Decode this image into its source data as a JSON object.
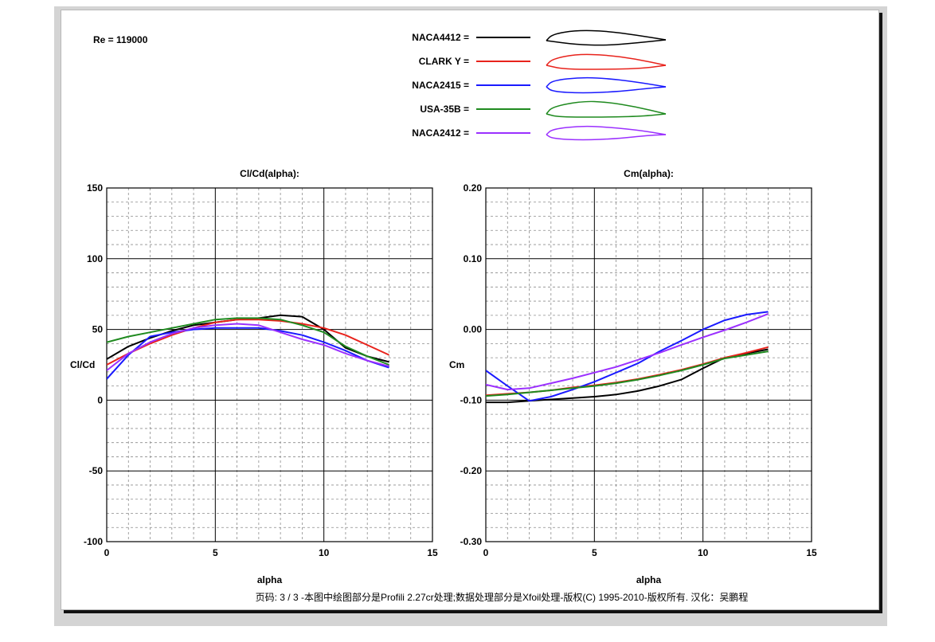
{
  "reynolds_label": "Re = 119000",
  "footer": "页码: 3 / 3 -本图中绘图部分是Profili 2.27cr处理;数据处理部分是Xfoil处理-版权(C) 1995-2010-版权所有. 汉化：吴鹏程",
  "legend": [
    {
      "name": "NACA4412 =",
      "color": "#000000",
      "profile": "naca4412"
    },
    {
      "name": "CLARK Y =",
      "color": "#e8231c",
      "profile": "clarky"
    },
    {
      "name": "NACA2415 =",
      "color": "#1a1aff",
      "profile": "naca2415"
    },
    {
      "name": "USA-35B =",
      "color": "#1f8a1f",
      "profile": "usa35b"
    },
    {
      "name": "NACA2412 =",
      "color": "#9b30ff",
      "profile": "naca2412"
    }
  ],
  "chart_data": [
    {
      "type": "line",
      "title": "Cl/Cd(alpha):",
      "xlabel": "alpha",
      "ylabel": "Cl/Cd",
      "xlim": [
        0,
        15
      ],
      "ylim": [
        -100,
        150
      ],
      "xticks": [
        0,
        5,
        10,
        15
      ],
      "yticks": [
        -100,
        -50,
        0,
        50,
        100,
        150
      ],
      "ytick_labels": [
        "-100",
        "-50",
        "0",
        "50",
        "100",
        "150"
      ],
      "grid": true,
      "series": [
        {
          "name": "NACA4412",
          "color": "#000000",
          "x": [
            0,
            1,
            2,
            3,
            4,
            5,
            6,
            7,
            8,
            9,
            10,
            11,
            12,
            13
          ],
          "y": [
            29,
            38,
            44,
            49,
            53,
            55,
            57,
            58,
            60,
            59,
            50,
            37,
            31,
            27
          ]
        },
        {
          "name": "CLARK Y",
          "color": "#e8231c",
          "x": [
            0,
            1,
            2,
            3,
            4,
            5,
            6,
            7,
            8,
            9,
            10,
            11,
            12,
            13
          ],
          "y": [
            25,
            33,
            40,
            46,
            51,
            55,
            57,
            57,
            56,
            54,
            51,
            46,
            39,
            32
          ]
        },
        {
          "name": "NACA2415",
          "color": "#1a1aff",
          "x": [
            0,
            1,
            2,
            3,
            4,
            5,
            6,
            7,
            8,
            9,
            10,
            11,
            12,
            13
          ],
          "y": [
            15,
            32,
            45,
            48,
            50,
            51,
            51,
            51,
            49,
            46,
            41,
            35,
            28,
            23
          ]
        },
        {
          "name": "USA-35B",
          "color": "#1f8a1f",
          "x": [
            0,
            1,
            2,
            3,
            4,
            5,
            6,
            7,
            8,
            9,
            10,
            11,
            12,
            13
          ],
          "y": [
            41,
            45,
            48,
            51,
            54,
            57,
            58,
            58,
            57,
            53,
            48,
            38,
            31,
            25
          ]
        },
        {
          "name": "NACA2412",
          "color": "#9b30ff",
          "x": [
            0,
            1,
            2,
            3,
            4,
            5,
            6,
            7,
            8,
            9,
            10,
            11,
            12,
            13
          ],
          "y": [
            21,
            33,
            41,
            47,
            51,
            53,
            54,
            53,
            48,
            43,
            39,
            33,
            28,
            24
          ]
        }
      ]
    },
    {
      "type": "line",
      "title": "Cm(alpha):",
      "xlabel": "alpha",
      "ylabel": "Cm",
      "xlim": [
        0,
        15
      ],
      "ylim": [
        -0.3,
        0.2
      ],
      "xticks": [
        0,
        5,
        10,
        15
      ],
      "yticks": [
        -0.3,
        -0.2,
        -0.1,
        0.0,
        0.1,
        0.2
      ],
      "ytick_labels": [
        "-0.30",
        "-0.20",
        "-0.10",
        "0.00",
        "0.10",
        "0.20"
      ],
      "grid": true,
      "series": [
        {
          "name": "NACA4412",
          "color": "#000000",
          "x": [
            0,
            1,
            2,
            3,
            4,
            5,
            6,
            7,
            8,
            9,
            10,
            11,
            12,
            13
          ],
          "y": [
            -0.103,
            -0.103,
            -0.101,
            -0.099,
            -0.097,
            -0.095,
            -0.092,
            -0.087,
            -0.08,
            -0.071,
            -0.055,
            -0.04,
            -0.034,
            -0.028
          ]
        },
        {
          "name": "CLARK Y",
          "color": "#e8231c",
          "x": [
            0,
            1,
            2,
            3,
            4,
            5,
            6,
            7,
            8,
            9,
            10,
            11,
            12,
            13
          ],
          "y": [
            -0.093,
            -0.091,
            -0.089,
            -0.086,
            -0.082,
            -0.079,
            -0.075,
            -0.07,
            -0.064,
            -0.057,
            -0.049,
            -0.04,
            -0.033,
            -0.025
          ]
        },
        {
          "name": "NACA2415",
          "color": "#1a1aff",
          "x": [
            0,
            1,
            2,
            3,
            4,
            5,
            6,
            7,
            8,
            9,
            10,
            11,
            12,
            13
          ],
          "y": [
            -0.058,
            -0.08,
            -0.101,
            -0.095,
            -0.085,
            -0.074,
            -0.061,
            -0.048,
            -0.031,
            -0.016,
            0.0,
            0.013,
            0.021,
            0.025
          ]
        },
        {
          "name": "USA-35B",
          "color": "#1f8a1f",
          "x": [
            0,
            1,
            2,
            3,
            4,
            5,
            6,
            7,
            8,
            9,
            10,
            11,
            12,
            13
          ],
          "y": [
            -0.094,
            -0.092,
            -0.089,
            -0.086,
            -0.083,
            -0.08,
            -0.076,
            -0.071,
            -0.065,
            -0.058,
            -0.05,
            -0.041,
            -0.036,
            -0.031
          ]
        },
        {
          "name": "NACA2412",
          "color": "#9b30ff",
          "x": [
            0,
            1,
            2,
            3,
            4,
            5,
            6,
            7,
            8,
            9,
            10,
            11,
            12,
            13
          ],
          "y": [
            -0.078,
            -0.085,
            -0.083,
            -0.076,
            -0.069,
            -0.061,
            -0.053,
            -0.043,
            -0.033,
            -0.022,
            -0.011,
            -0.001,
            0.01,
            0.022
          ]
        }
      ]
    }
  ]
}
